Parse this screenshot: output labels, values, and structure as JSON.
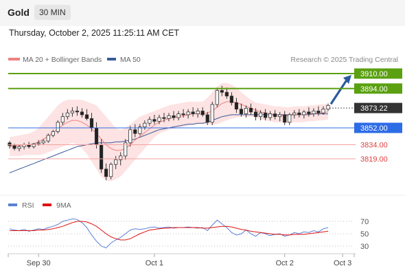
{
  "header": {
    "symbol": "Gold",
    "timeframe": "30 MIN",
    "timestamp": "Thursday, October 2, 2025 11:25:11 AM CET"
  },
  "chart_data": [
    {
      "type": "line",
      "legend": [
        {
          "name": "MA 20 + Bollinger Bands",
          "color": "#f08080"
        },
        {
          "name": "MA 50",
          "color": "#3a5a9a"
        }
      ],
      "copyright": "Research © 2025 Trading Central",
      "ylim": [
        3780,
        3920
      ],
      "levels": [
        {
          "value": 3910.0,
          "label": "3910.00",
          "color": "#5aa010",
          "style": "target"
        },
        {
          "value": 3894.0,
          "label": "3894.00",
          "color": "#5aa010",
          "style": "target"
        },
        {
          "value": 3873.22,
          "label": "3873.22",
          "color": "#333333",
          "style": "current"
        },
        {
          "value": 3852.0,
          "label": "3852.00",
          "color": "#2e6ce6",
          "style": "pivot"
        },
        {
          "value": 3834.0,
          "label": "3834.00",
          "color": "#e04040",
          "style": "support"
        },
        {
          "value": 3819.0,
          "label": "3819.00",
          "color": "#e04040",
          "style": "support"
        }
      ],
      "x_ticks": [
        {
          "label": "Sep 30",
          "bar": 6
        },
        {
          "label": "Oct 1",
          "bar": 30
        },
        {
          "label": "Oct 2",
          "bar": 57
        },
        {
          "label": "Oct 3",
          "bar": 69
        }
      ],
      "candles": [
        [
          3836,
          3838,
          3830,
          3833
        ],
        [
          3833,
          3835,
          3828,
          3830
        ],
        [
          3830,
          3834,
          3827,
          3832
        ],
        [
          3832,
          3836,
          3829,
          3834
        ],
        [
          3834,
          3837,
          3830,
          3832
        ],
        [
          3832,
          3836,
          3830,
          3835
        ],
        [
          3835,
          3839,
          3833,
          3836
        ],
        [
          3836,
          3840,
          3834,
          3838
        ],
        [
          3838,
          3846,
          3836,
          3844
        ],
        [
          3844,
          3850,
          3842,
          3848
        ],
        [
          3848,
          3860,
          3846,
          3858
        ],
        [
          3858,
          3868,
          3855,
          3864
        ],
        [
          3864,
          3872,
          3861,
          3868
        ],
        [
          3868,
          3874,
          3864,
          3870
        ],
        [
          3870,
          3875,
          3865,
          3869
        ],
        [
          3869,
          3873,
          3863,
          3866
        ],
        [
          3866,
          3872,
          3860,
          3862
        ],
        [
          3862,
          3868,
          3848,
          3852
        ],
        [
          3852,
          3858,
          3830,
          3834
        ],
        [
          3834,
          3840,
          3804,
          3808
        ],
        [
          3808,
          3814,
          3796,
          3800
        ],
        [
          3800,
          3815,
          3797,
          3813
        ],
        [
          3813,
          3822,
          3808,
          3818
        ],
        [
          3818,
          3826,
          3812,
          3822
        ],
        [
          3822,
          3840,
          3818,
          3836
        ],
        [
          3836,
          3854,
          3832,
          3850
        ],
        [
          3850,
          3856,
          3842,
          3846
        ],
        [
          3846,
          3856,
          3844,
          3853
        ],
        [
          3853,
          3860,
          3850,
          3857
        ],
        [
          3857,
          3864,
          3854,
          3861
        ],
        [
          3861,
          3866,
          3856,
          3859
        ],
        [
          3859,
          3866,
          3856,
          3863
        ],
        [
          3863,
          3868,
          3858,
          3862
        ],
        [
          3862,
          3868,
          3859,
          3865
        ],
        [
          3865,
          3870,
          3860,
          3863
        ],
        [
          3863,
          3870,
          3860,
          3867
        ],
        [
          3867,
          3872,
          3863,
          3866
        ],
        [
          3866,
          3872,
          3862,
          3869
        ],
        [
          3869,
          3874,
          3864,
          3867
        ],
        [
          3867,
          3873,
          3863,
          3870
        ],
        [
          3870,
          3874,
          3864,
          3866
        ],
        [
          3866,
          3869,
          3855,
          3858
        ],
        [
          3858,
          3880,
          3855,
          3877
        ],
        [
          3877,
          3895,
          3874,
          3892
        ],
        [
          3892,
          3897,
          3886,
          3890
        ],
        [
          3890,
          3895,
          3883,
          3886
        ],
        [
          3886,
          3890,
          3876,
          3879
        ],
        [
          3879,
          3884,
          3868,
          3872
        ],
        [
          3872,
          3878,
          3864,
          3867
        ],
        [
          3867,
          3876,
          3863,
          3873
        ],
        [
          3873,
          3878,
          3866,
          3869
        ],
        [
          3869,
          3873,
          3860,
          3864
        ],
        [
          3864,
          3871,
          3860,
          3868
        ],
        [
          3868,
          3872,
          3860,
          3863
        ],
        [
          3863,
          3870,
          3860,
          3867
        ],
        [
          3867,
          3871,
          3861,
          3864
        ],
        [
          3864,
          3869,
          3859,
          3866
        ],
        [
          3866,
          3870,
          3855,
          3858
        ],
        [
          3858,
          3868,
          3855,
          3866
        ],
        [
          3866,
          3871,
          3862,
          3868
        ],
        [
          3868,
          3872,
          3863,
          3866
        ],
        [
          3866,
          3871,
          3862,
          3869
        ],
        [
          3869,
          3874,
          3864,
          3867
        ],
        [
          3867,
          3873,
          3864,
          3870
        ],
        [
          3870,
          3875,
          3865,
          3868
        ],
        [
          3868,
          3875,
          3866,
          3872
        ],
        [
          3872,
          3878,
          3870,
          3876
        ]
      ],
      "ma20": [
        3832,
        3833,
        3833,
        3834,
        3834,
        3835,
        3837,
        3840,
        3843,
        3847,
        3851,
        3855,
        3858,
        3860,
        3860,
        3858,
        3855,
        3851,
        3846,
        3840,
        3834,
        3830,
        3828,
        3828,
        3830,
        3834,
        3839,
        3843,
        3847,
        3851,
        3855,
        3858,
        3860,
        3862,
        3863,
        3864,
        3865,
        3866,
        3867,
        3867,
        3867,
        3868,
        3870,
        3874,
        3878,
        3880,
        3880,
        3879,
        3877,
        3875,
        3873,
        3871,
        3869,
        3868,
        3867,
        3866,
        3866,
        3865,
        3865,
        3866,
        3866,
        3866,
        3867,
        3867,
        3868,
        3868,
        3869
      ],
      "bb_upper": [
        3842,
        3843,
        3844,
        3845,
        3846,
        3848,
        3852,
        3858,
        3864,
        3870,
        3876,
        3880,
        3882,
        3882,
        3882,
        3882,
        3880,
        3878,
        3876,
        3870,
        3864,
        3858,
        3852,
        3850,
        3852,
        3856,
        3860,
        3864,
        3866,
        3868,
        3870,
        3872,
        3874,
        3876,
        3877,
        3878,
        3879,
        3880,
        3880,
        3880,
        3880,
        3884,
        3890,
        3896,
        3900,
        3900,
        3898,
        3895,
        3890,
        3886,
        3882,
        3879,
        3878,
        3877,
        3876,
        3875,
        3875,
        3874,
        3874,
        3875,
        3875,
        3875,
        3876,
        3876,
        3877,
        3877,
        3878
      ],
      "bb_lower": [
        3822,
        3822,
        3822,
        3823,
        3823,
        3823,
        3823,
        3824,
        3826,
        3828,
        3830,
        3832,
        3834,
        3836,
        3834,
        3830,
        3824,
        3816,
        3808,
        3800,
        3796,
        3795,
        3797,
        3800,
        3806,
        3812,
        3818,
        3824,
        3830,
        3836,
        3842,
        3846,
        3848,
        3850,
        3851,
        3852,
        3853,
        3854,
        3855,
        3856,
        3856,
        3856,
        3855,
        3856,
        3858,
        3860,
        3862,
        3863,
        3864,
        3864,
        3864,
        3863,
        3861,
        3860,
        3859,
        3858,
        3858,
        3857,
        3857,
        3858,
        3858,
        3858,
        3859,
        3859,
        3860,
        3860,
        3861
      ],
      "ma50": [
        3804,
        3806,
        3808,
        3810,
        3812,
        3814,
        3816,
        3818,
        3820,
        3822,
        3824,
        3826,
        3828,
        3830,
        3832,
        3833,
        3834,
        3835,
        3836,
        3836,
        3836,
        3836,
        3837,
        3837,
        3838,
        3839,
        3840,
        3842,
        3844,
        3846,
        3848,
        3850,
        3851,
        3852,
        3853,
        3854,
        3855,
        3856,
        3856,
        3857,
        3857,
        3858,
        3860,
        3862,
        3864,
        3865,
        3866,
        3866,
        3866,
        3866,
        3866,
        3866,
        3866,
        3866,
        3866,
        3866,
        3866,
        3866,
        3866,
        3866,
        3866,
        3866,
        3866,
        3867,
        3867,
        3867,
        3867
      ]
    },
    {
      "type": "line",
      "legend": [
        {
          "name": "RSI",
          "color": "#5a7fd6"
        },
        {
          "name": "9MA",
          "color": "#e01010"
        }
      ],
      "ylim": [
        20,
        80
      ],
      "yticks": [
        "70",
        "50",
        "30"
      ],
      "ytick_values": [
        70,
        50,
        30
      ],
      "rsi": [
        58,
        56,
        55,
        57,
        54,
        56,
        58,
        57,
        60,
        62,
        65,
        70,
        72,
        74,
        73,
        68,
        60,
        48,
        38,
        30,
        27,
        35,
        40,
        44,
        50,
        56,
        58,
        57,
        58,
        60,
        61,
        59,
        60,
        61,
        59,
        60,
        60,
        61,
        60,
        59,
        60,
        55,
        64,
        72,
        66,
        60,
        52,
        48,
        50,
        56,
        50,
        46,
        52,
        50,
        47,
        49,
        50,
        46,
        48,
        52,
        50,
        53,
        52,
        55,
        53,
        58,
        60
      ],
      "rsi_ma": [
        55,
        55,
        55,
        55,
        55,
        55,
        56,
        56,
        57,
        58,
        60,
        62,
        65,
        68,
        70,
        70,
        69,
        66,
        62,
        56,
        50,
        45,
        42,
        40,
        40,
        42,
        46,
        50,
        53,
        56,
        57,
        58,
        59,
        59,
        60,
        60,
        60,
        60,
        60,
        60,
        59,
        59,
        60,
        61,
        62,
        62,
        61,
        59,
        57,
        56,
        54,
        53,
        52,
        51,
        50,
        49,
        49,
        48,
        48,
        49,
        49,
        49,
        50,
        51,
        52,
        53,
        54
      ]
    }
  ],
  "x_axis_labels": [
    "Sep 30",
    "Oct 1",
    "Oct 2",
    "Oct 3"
  ]
}
